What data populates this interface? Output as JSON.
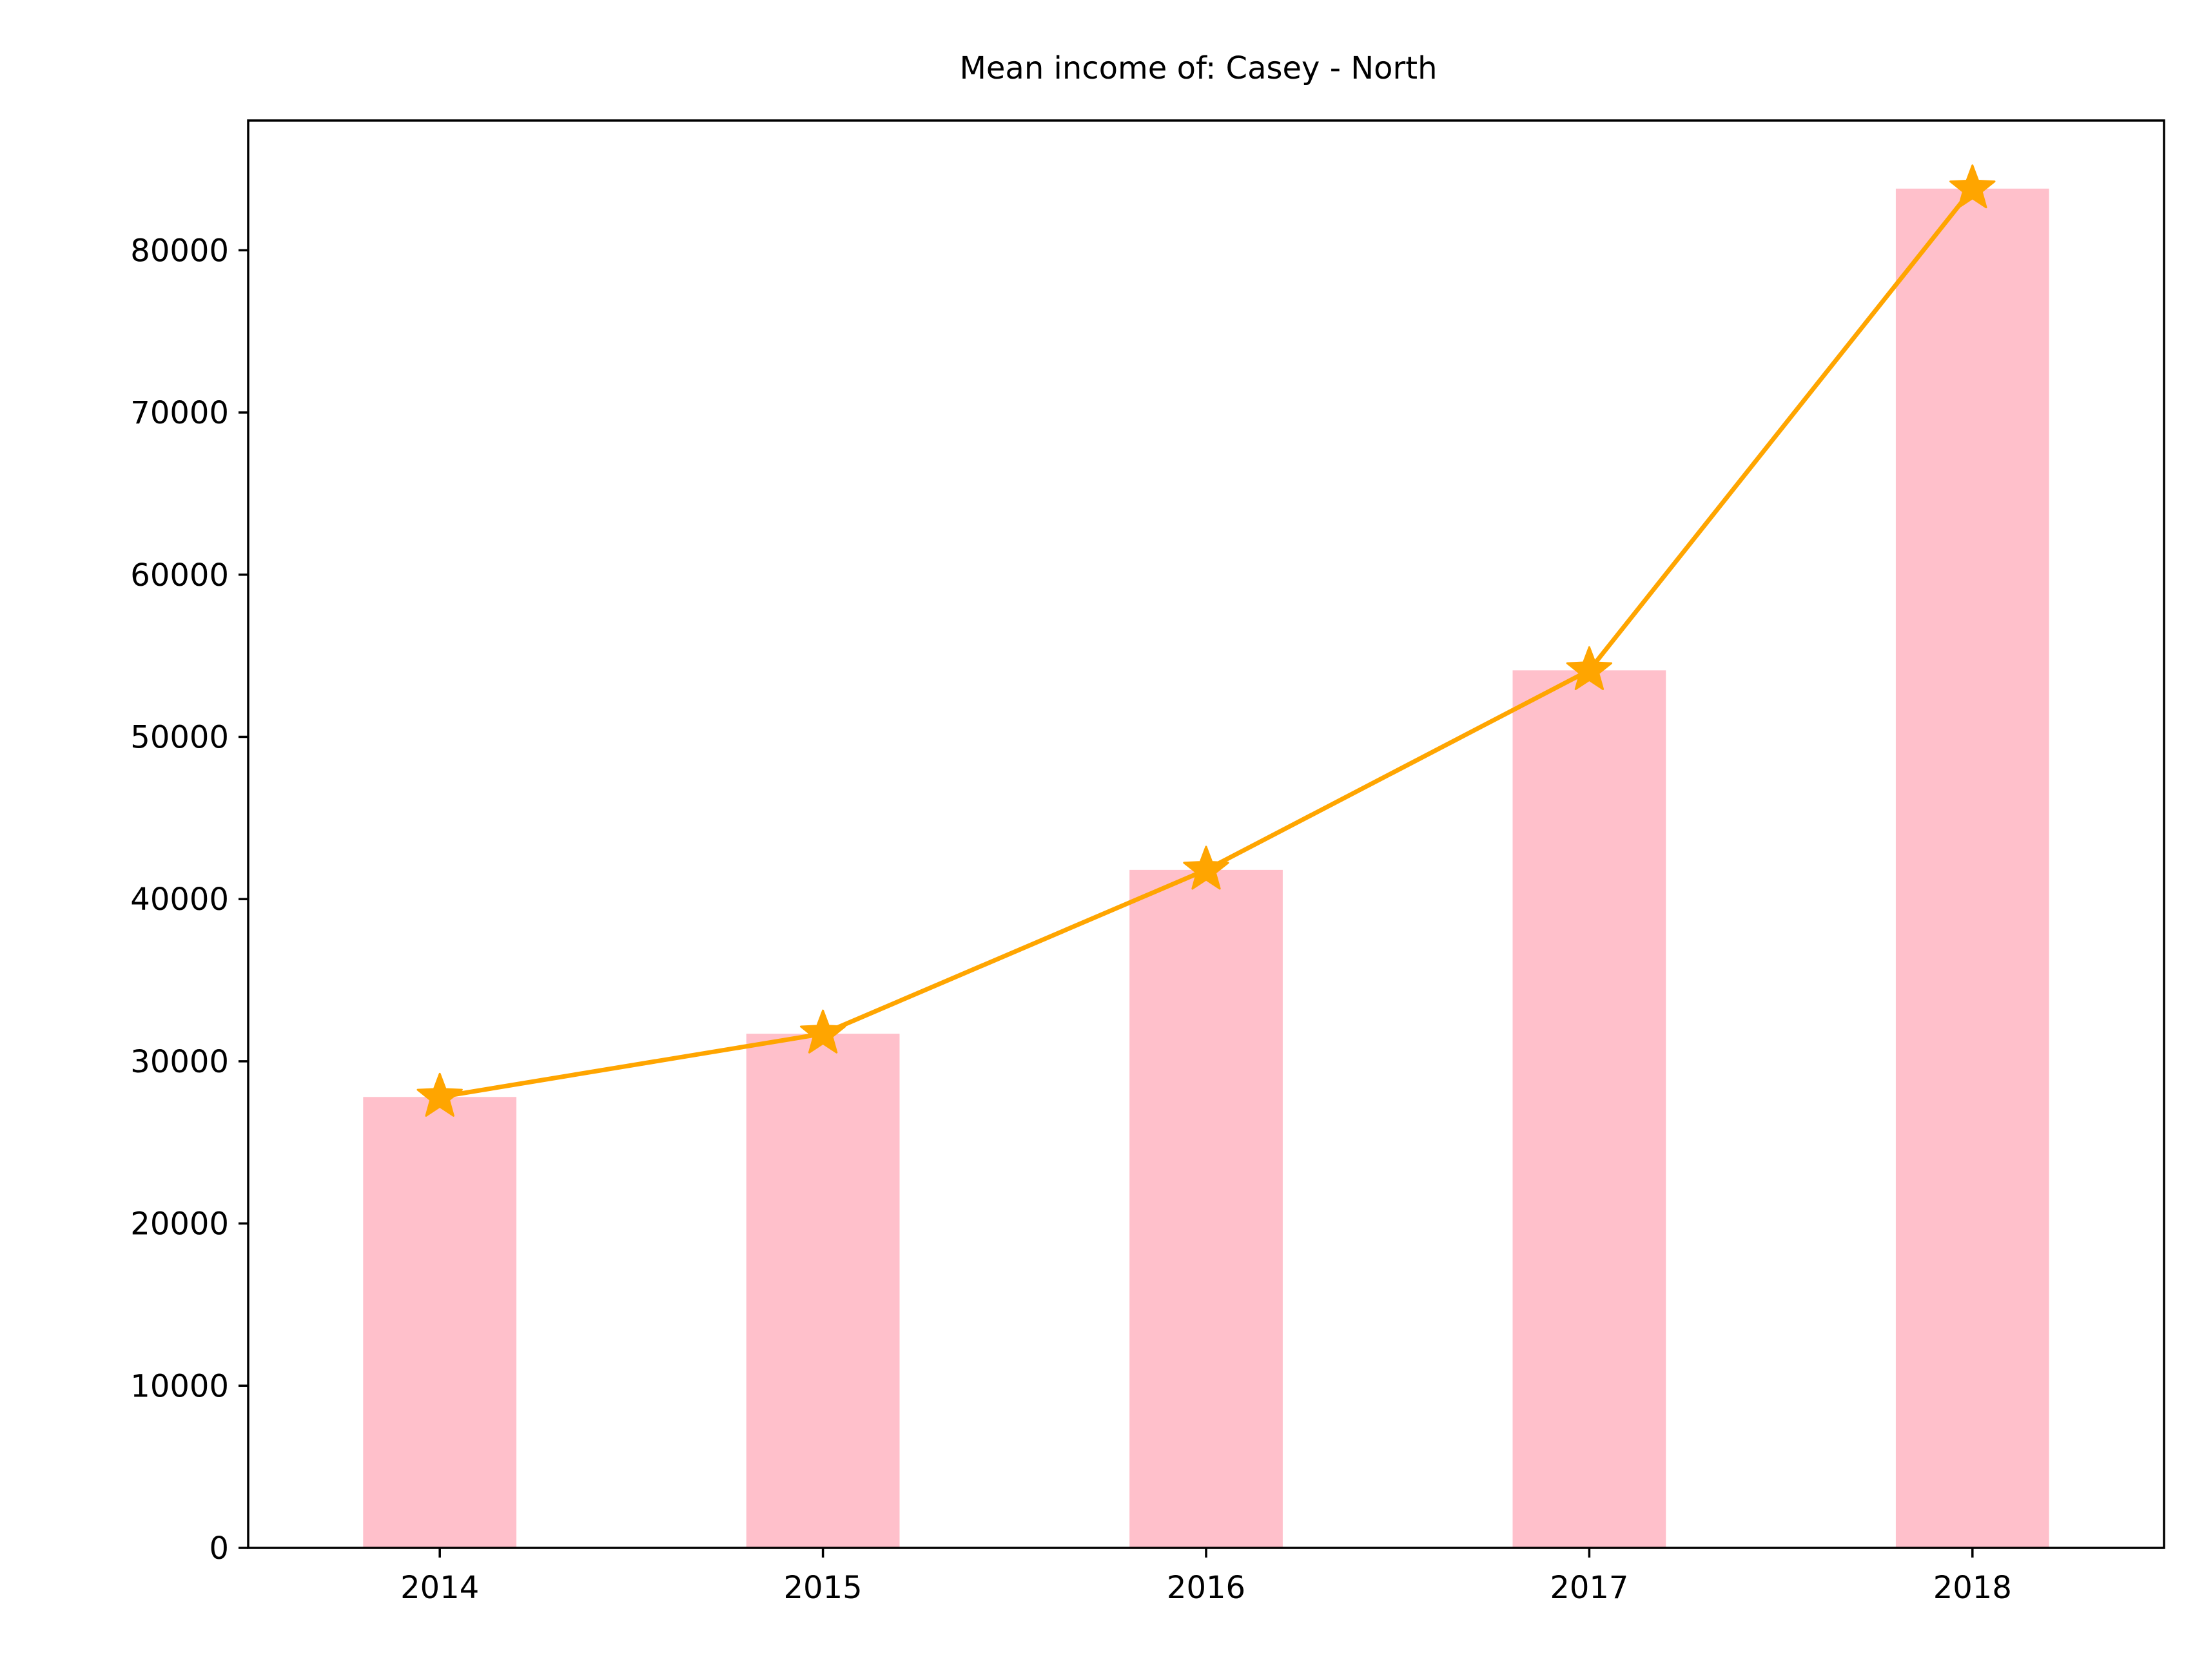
{
  "chart_data": {
    "type": "bar",
    "title": "Mean income of: Casey - North",
    "xlabel": "",
    "ylabel": "",
    "categories": [
      "2014",
      "2015",
      "2016",
      "2017",
      "2018"
    ],
    "series": [
      {
        "kind": "bar",
        "values": [
          27800,
          31700,
          41800,
          54100,
          83800
        ]
      },
      {
        "kind": "line",
        "marker": "star",
        "values": [
          27800,
          31700,
          41800,
          54100,
          83800
        ]
      }
    ],
    "ylim": [
      0,
      88000
    ],
    "yticks": [
      0,
      10000,
      20000,
      30000,
      40000,
      50000,
      60000,
      70000,
      80000
    ],
    "ytick_labels": [
      "0",
      "10000",
      "20000",
      "30000",
      "40000",
      "50000",
      "60000",
      "70000",
      "80000"
    ],
    "grid": false,
    "legend": "none",
    "colors": {
      "bar": "#ffc0cb",
      "line": "#ffa500",
      "axis": "#000000"
    }
  }
}
